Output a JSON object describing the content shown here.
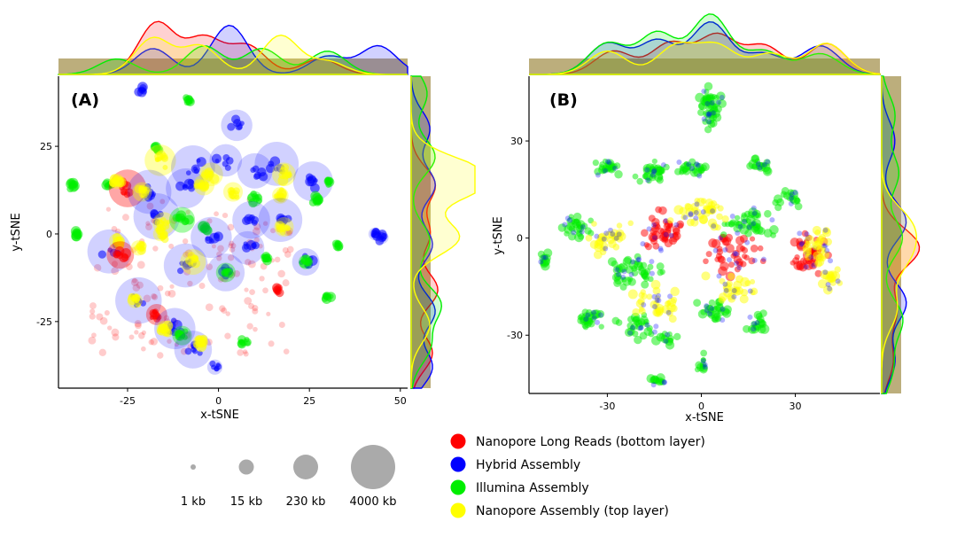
{
  "chart_data": [
    {
      "type": "scatter",
      "panel_label": "(A)",
      "xlabel": "x-tSNE",
      "ylabel": "y-tSNE",
      "xlim": [
        -44,
        52
      ],
      "ylim": [
        -44,
        45
      ],
      "xticks": [
        -25,
        0,
        25,
        50
      ],
      "yticks": [
        -25,
        0,
        25
      ],
      "tick_labels_x": [
        "-25",
        "0",
        "25",
        "50"
      ],
      "tick_labels_y": [
        "-25",
        "0",
        "25"
      ],
      "clusters": [
        {
          "x": -21,
          "y": 41,
          "series": "Hybrid Assembly",
          "size_kb": 3
        },
        {
          "x": -8,
          "y": 38,
          "series": "Illumina Assembly",
          "size_kb": 2
        },
        {
          "x": 5,
          "y": 31,
          "series": "Hybrid Assembly",
          "size_kb": 800
        },
        {
          "x": -17,
          "y": 24,
          "series": "Illumina Assembly",
          "size_kb": 2
        },
        {
          "x": -16,
          "y": 21,
          "series": "Yellow",
          "size_kb": 800
        },
        {
          "x": -7,
          "y": 19,
          "series": "Hybrid Assembly",
          "size_kb": 2500
        },
        {
          "x": -2,
          "y": 17,
          "series": "Yellow",
          "size_kb": 300
        },
        {
          "x": 2,
          "y": 21,
          "series": "Hybrid Assembly",
          "size_kb": 900
        },
        {
          "x": 10,
          "y": 18,
          "series": "Hybrid Assembly",
          "size_kb": 1200
        },
        {
          "x": 16,
          "y": 20,
          "series": "Hybrid Assembly",
          "size_kb": 2500
        },
        {
          "x": 18,
          "y": 17,
          "series": "Yellow",
          "size_kb": 300
        },
        {
          "x": 26,
          "y": 15,
          "series": "Hybrid Assembly",
          "size_kb": 1800
        },
        {
          "x": 30,
          "y": 15,
          "series": "Illumina Assembly",
          "size_kb": 3
        },
        {
          "x": 27,
          "y": 10,
          "series": "Illumina Assembly",
          "size_kb": 20
        },
        {
          "x": -40,
          "y": 14,
          "series": "Illumina Assembly",
          "size_kb": 2
        },
        {
          "x": -30,
          "y": 14,
          "series": "Illumina Assembly",
          "size_kb": 3
        },
        {
          "x": -25,
          "y": 13,
          "series": "Red",
          "size_kb": 1500
        },
        {
          "x": -28,
          "y": 15,
          "series": "Yellow",
          "size_kb": 60
        },
        {
          "x": -19,
          "y": 12,
          "series": "Hybrid Assembly",
          "size_kb": 2500
        },
        {
          "x": -21,
          "y": 12,
          "series": "Yellow",
          "size_kb": 150
        },
        {
          "x": -9,
          "y": 13,
          "series": "Hybrid Assembly",
          "size_kb": 1800
        },
        {
          "x": -4,
          "y": 14,
          "series": "Yellow",
          "size_kb": 200
        },
        {
          "x": 4,
          "y": 12,
          "series": "Yellow",
          "size_kb": 150
        },
        {
          "x": 10,
          "y": 10,
          "series": "Illumina Assembly",
          "size_kb": 60
        },
        {
          "x": 17,
          "y": 11,
          "series": "Yellow",
          "size_kb": 80
        },
        {
          "x": -17,
          "y": 5,
          "series": "Hybrid Assembly",
          "size_kb": 3000
        },
        {
          "x": -15,
          "y": 3,
          "series": "Yellow",
          "size_kb": 250
        },
        {
          "x": -10,
          "y": 4,
          "series": "Illumina Assembly",
          "size_kb": 400
        },
        {
          "x": -4,
          "y": 2,
          "series": "Illumina Assembly",
          "size_kb": 30
        },
        {
          "x": 9,
          "y": 4,
          "series": "Hybrid Assembly",
          "size_kb": 1500
        },
        {
          "x": 17,
          "y": 4,
          "series": "Hybrid Assembly",
          "size_kb": 2500
        },
        {
          "x": 18,
          "y": 2,
          "series": "Yellow",
          "size_kb": 150
        },
        {
          "x": -2,
          "y": -1,
          "series": "Hybrid Assembly",
          "size_kb": 2000
        },
        {
          "x": -16,
          "y": 0,
          "series": "Yellow",
          "size_kb": 50
        },
        {
          "x": -39,
          "y": 0,
          "series": "Illumina Assembly",
          "size_kb": 2
        },
        {
          "x": 43,
          "y": 0,
          "series": "Hybrid Assembly",
          "size_kb": 30
        },
        {
          "x": 45,
          "y": -1,
          "series": "Hybrid Assembly",
          "size_kb": 30
        },
        {
          "x": -30,
          "y": -5,
          "series": "Hybrid Assembly",
          "size_kb": 2500
        },
        {
          "x": -28,
          "y": -2,
          "series": "Yellow",
          "size_kb": 60
        },
        {
          "x": -27,
          "y": -6,
          "series": "Red",
          "size_kb": 500
        },
        {
          "x": -22,
          "y": -4,
          "series": "Yellow",
          "size_kb": 60
        },
        {
          "x": -9,
          "y": -9,
          "series": "Hybrid Assembly",
          "size_kb": 2500
        },
        {
          "x": -7,
          "y": -8,
          "series": "Yellow",
          "size_kb": 400
        },
        {
          "x": 2,
          "y": -11,
          "series": "Hybrid Assembly",
          "size_kb": 1500
        },
        {
          "x": 2,
          "y": -11,
          "series": "Illumina Assembly",
          "size_kb": 150
        },
        {
          "x": 8,
          "y": -4,
          "series": "Hybrid Assembly",
          "size_kb": 1000
        },
        {
          "x": 24,
          "y": -8,
          "series": "Hybrid Assembly",
          "size_kb": 500
        },
        {
          "x": 24,
          "y": -8,
          "series": "Illumina Assembly",
          "size_kb": 50
        },
        {
          "x": 33,
          "y": -3,
          "series": "Illumina Assembly",
          "size_kb": 3
        },
        {
          "x": 13,
          "y": -7,
          "series": "Illumina Assembly",
          "size_kb": 3
        },
        {
          "x": 16,
          "y": -16,
          "series": "Red",
          "size_kb": 3
        },
        {
          "x": 30,
          "y": -18,
          "series": "Illumina Assembly",
          "size_kb": 3
        },
        {
          "x": -22,
          "y": -19,
          "series": "Hybrid Assembly",
          "size_kb": 3000
        },
        {
          "x": -23,
          "y": -19,
          "series": "Yellow",
          "size_kb": 60
        },
        {
          "x": -17,
          "y": -23,
          "series": "Red",
          "size_kb": 200
        },
        {
          "x": -12,
          "y": -27,
          "series": "Hybrid Assembly",
          "size_kb": 2000
        },
        {
          "x": -15,
          "y": -27,
          "series": "Yellow",
          "size_kb": 60
        },
        {
          "x": -10,
          "y": -29,
          "series": "Illumina Assembly",
          "size_kb": 150
        },
        {
          "x": -7,
          "y": -33,
          "series": "Hybrid Assembly",
          "size_kb": 1500
        },
        {
          "x": -5,
          "y": -31,
          "series": "Yellow",
          "size_kb": 60
        },
        {
          "x": 7,
          "y": -31,
          "series": "Illumina Assembly",
          "size_kb": 3
        },
        {
          "x": -1,
          "y": -38,
          "series": "Hybrid Assembly",
          "size_kb": 60
        }
      ],
      "marginal_x_peaks": [
        {
          "series": "Nanopore Long Reads (bottom layer)",
          "peaks": [
            [
              -17,
              1.0
            ],
            [
              -4,
              0.7
            ],
            [
              8,
              0.55
            ],
            [
              28,
              0.3
            ]
          ]
        },
        {
          "series": "Hybrid Assembly",
          "peaks": [
            [
              -18,
              0.5
            ],
            [
              3,
              0.95
            ],
            [
              30,
              0.35
            ],
            [
              44,
              0.55
            ]
          ]
        },
        {
          "series": "Illumina Assembly",
          "peaks": [
            [
              -28,
              0.3
            ],
            [
              -4,
              0.55
            ],
            [
              12,
              0.5
            ],
            [
              30,
              0.45
            ]
          ]
        },
        {
          "series": "Nanopore Assembly (top layer)",
          "peaks": [
            [
              -18,
              0.7
            ],
            [
              -5,
              0.55
            ],
            [
              17,
              0.75
            ],
            [
              30,
              0.25
            ]
          ]
        }
      ],
      "marginal_y_peaks": [
        {
          "series": "Nanopore Long Reads (bottom layer)",
          "peaks": [
            [
              14,
              0.45
            ],
            [
              0,
              0.35
            ],
            [
              -16,
              0.5
            ],
            [
              -34,
              0.4
            ]
          ]
        },
        {
          "series": "Hybrid Assembly",
          "peaks": [
            [
              30,
              0.35
            ],
            [
              14,
              0.45
            ],
            [
              -3,
              0.4
            ],
            [
              -22,
              0.45
            ],
            [
              -38,
              0.4
            ]
          ]
        },
        {
          "series": "Illumina Assembly",
          "peaks": [
            [
              40,
              0.3
            ],
            [
              22,
              0.45
            ],
            [
              -2,
              0.35
            ],
            [
              -20,
              0.55
            ],
            [
              -32,
              0.35
            ]
          ]
        },
        {
          "series": "Nanopore Assembly (top layer)",
          "peaks": [
            [
              18,
              0.75
            ],
            [
              14,
              0.95
            ],
            [
              -1,
              0.9
            ],
            [
              -26,
              0.35
            ]
          ]
        }
      ]
    },
    {
      "type": "scatter",
      "panel_label": "(B)",
      "xlabel": "x-tSNE",
      "ylabel": "y-tSNE",
      "xlim": [
        -55,
        57
      ],
      "ylim": [
        -48,
        50
      ],
      "xticks": [
        -30,
        0,
        30
      ],
      "yticks": [
        -30,
        0,
        30
      ],
      "tick_labels_x": [
        "-30",
        "0",
        "30"
      ],
      "tick_labels_y": [
        "-30",
        "0",
        "30"
      ],
      "clusters": [
        {
          "x": 3,
          "y": 40,
          "series": "Illumina Assembly",
          "w": 10,
          "h": 20,
          "density": 45
        },
        {
          "x": -30,
          "y": 22,
          "series": "Illumina Assembly",
          "w": 12,
          "h": 6,
          "density": 20
        },
        {
          "x": 18,
          "y": 23,
          "series": "Illumina Assembly",
          "w": 10,
          "h": 6,
          "density": 15
        },
        {
          "x": -15,
          "y": 20,
          "series": "Illumina Assembly",
          "w": 14,
          "h": 10,
          "density": 25
        },
        {
          "x": -3,
          "y": 22,
          "series": "Illumina Assembly",
          "w": 14,
          "h": 8,
          "density": 22
        },
        {
          "x": 28,
          "y": 12,
          "series": "Illumina Assembly",
          "w": 12,
          "h": 8,
          "density": 15
        },
        {
          "x": -50,
          "y": -7,
          "series": "Illumina Assembly",
          "w": 4,
          "h": 6,
          "density": 10
        },
        {
          "x": -40,
          "y": 4,
          "series": "Illumina Assembly",
          "w": 12,
          "h": 10,
          "density": 25
        },
        {
          "x": -30,
          "y": 0,
          "series": "Yellow",
          "w": 18,
          "h": 14,
          "density": 30
        },
        {
          "x": -12,
          "y": 2,
          "series": "Red",
          "w": 22,
          "h": 16,
          "density": 40
        },
        {
          "x": 0,
          "y": 8,
          "series": "Yellow",
          "w": 22,
          "h": 16,
          "density": 35
        },
        {
          "x": 10,
          "y": -5,
          "series": "Red",
          "w": 24,
          "h": 16,
          "density": 40
        },
        {
          "x": 15,
          "y": 4,
          "series": "Illumina Assembly",
          "w": 22,
          "h": 14,
          "density": 40
        },
        {
          "x": -20,
          "y": -10,
          "series": "Illumina Assembly",
          "w": 24,
          "h": 12,
          "density": 40
        },
        {
          "x": 35,
          "y": -5,
          "series": "Red",
          "w": 18,
          "h": 18,
          "density": 40
        },
        {
          "x": 38,
          "y": -2,
          "series": "Yellow",
          "w": 14,
          "h": 18,
          "density": 25
        },
        {
          "x": 42,
          "y": -13,
          "series": "Yellow",
          "w": 10,
          "h": 8,
          "density": 15
        },
        {
          "x": -35,
          "y": -25,
          "series": "Illumina Assembly",
          "w": 14,
          "h": 10,
          "density": 25
        },
        {
          "x": -20,
          "y": -27,
          "series": "Illumina Assembly",
          "w": 16,
          "h": 12,
          "density": 25
        },
        {
          "x": 5,
          "y": -23,
          "series": "Illumina Assembly",
          "w": 18,
          "h": 10,
          "density": 25
        },
        {
          "x": 18,
          "y": -27,
          "series": "Illumina Assembly",
          "w": 10,
          "h": 8,
          "density": 15
        },
        {
          "x": -12,
          "y": -31,
          "series": "Illumina Assembly",
          "w": 10,
          "h": 6,
          "density": 12
        },
        {
          "x": 0,
          "y": -39,
          "series": "Illumina Assembly",
          "w": 4,
          "h": 8,
          "density": 10
        },
        {
          "x": -14,
          "y": -44,
          "series": "Illumina Assembly",
          "w": 6,
          "h": 5,
          "density": 10
        },
        {
          "x": -15,
          "y": -20,
          "series": "Yellow",
          "w": 24,
          "h": 14,
          "density": 30
        },
        {
          "x": 10,
          "y": -15,
          "series": "Yellow",
          "w": 20,
          "h": 12,
          "density": 25
        }
      ],
      "marginal_x_peaks": [
        {
          "series": "Nanopore Long Reads (bottom layer)",
          "peaks": [
            [
              -28,
              0.45
            ],
            [
              -10,
              0.6
            ],
            [
              5,
              0.75
            ],
            [
              20,
              0.55
            ],
            [
              40,
              0.6
            ]
          ]
        },
        {
          "series": "Hybrid Assembly",
          "peaks": [
            [
              -30,
              0.6
            ],
            [
              -14,
              0.65
            ],
            [
              3,
              1.0
            ],
            [
              20,
              0.4
            ],
            [
              38,
              0.55
            ]
          ]
        },
        {
          "series": "Illumina Assembly",
          "peaks": [
            [
              -30,
              0.6
            ],
            [
              -14,
              0.8
            ],
            [
              3,
              1.15
            ],
            [
              20,
              0.45
            ],
            [
              38,
              0.4
            ]
          ]
        },
        {
          "series": "Nanopore Assembly (top layer)",
          "peaks": [
            [
              -30,
              0.45
            ],
            [
              -8,
              0.55
            ],
            [
              5,
              0.55
            ],
            [
              22,
              0.4
            ],
            [
              40,
              0.6
            ]
          ]
        }
      ],
      "marginal_y_peaks": [
        {
          "series": "Nanopore Long Reads (bottom layer)",
          "peaks": [
            [
              -3,
              1.0
            ],
            [
              -22,
              0.4
            ],
            [
              -38,
              0.3
            ]
          ]
        },
        {
          "series": "Hybrid Assembly",
          "peaks": [
            [
              30,
              0.35
            ],
            [
              5,
              0.65
            ],
            [
              -20,
              0.65
            ],
            [
              -38,
              0.35
            ]
          ]
        },
        {
          "series": "Illumina Assembly",
          "peaks": [
            [
              38,
              0.35
            ],
            [
              20,
              0.45
            ],
            [
              0,
              0.55
            ],
            [
              -25,
              0.55
            ],
            [
              -40,
              0.3
            ]
          ]
        },
        {
          "series": "Nanopore Assembly (top layer)",
          "peaks": [
            [
              4,
              0.7
            ],
            [
              -6,
              0.6
            ],
            [
              -22,
              0.4
            ]
          ]
        }
      ]
    }
  ],
  "legend": {
    "items": [
      {
        "label": "Nanopore Long Reads (bottom layer)",
        "color": "#ff0000"
      },
      {
        "label": "Hybrid Assembly",
        "color": "#0000ff"
      },
      {
        "label": "Illumina Assembly",
        "color": "#00ee00"
      },
      {
        "label": "Nanopore Assembly (top layer)",
        "color": "#ffff00"
      }
    ],
    "sizes": [
      {
        "label": "1 kb",
        "kb": 1
      },
      {
        "label": "15 kb",
        "kb": 15
      },
      {
        "label": "230 kb",
        "kb": 230
      },
      {
        "label": "4000 kb",
        "kb": 4000
      }
    ]
  },
  "colors": {
    "red": "#ff0000",
    "blue": "#0000ff",
    "green": "#00ee00",
    "yellow": "#ffff00",
    "overlap_fill": "#b5a56e",
    "axis": "#000000"
  }
}
